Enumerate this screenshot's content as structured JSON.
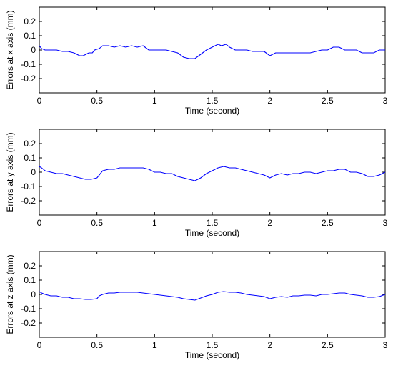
{
  "chart_data": [
    {
      "type": "line",
      "xlabel": "Time (second)",
      "ylabel": "Errors at x axis (mm)",
      "xlim": [
        0,
        3
      ],
      "ylim": [
        -0.3,
        0.3
      ],
      "xticks": [
        0,
        0.5,
        1,
        1.5,
        2,
        2.5,
        3
      ],
      "xtick_labels": [
        "0",
        "0.5",
        "1",
        "1.5",
        "2",
        "2.5",
        "3"
      ],
      "yticks": [
        -0.2,
        -0.1,
        0,
        0.1,
        0.2
      ],
      "ytick_labels": [
        "-0.2",
        "-0.1",
        "0",
        "0.1",
        "0.2"
      ],
      "grid": false,
      "line_color": "#0000ff",
      "series": [
        {
          "x": [
            0,
            0.02,
            0.05,
            0.1,
            0.15,
            0.2,
            0.25,
            0.3,
            0.35,
            0.38,
            0.43,
            0.46,
            0.48,
            0.52,
            0.55,
            0.6,
            0.65,
            0.7,
            0.75,
            0.8,
            0.85,
            0.9,
            0.95,
            1.0,
            1.05,
            1.1,
            1.15,
            1.2,
            1.25,
            1.3,
            1.35,
            1.4,
            1.45,
            1.5,
            1.55,
            1.58,
            1.62,
            1.65,
            1.7,
            1.75,
            1.8,
            1.85,
            1.9,
            1.95,
            2.0,
            2.05,
            2.1,
            2.15,
            2.2,
            2.25,
            2.3,
            2.35,
            2.4,
            2.45,
            2.5,
            2.55,
            2.6,
            2.65,
            2.7,
            2.75,
            2.8,
            2.85,
            2.9,
            2.95,
            3.0
          ],
          "y": [
            0.03,
            0.01,
            0.0,
            0.0,
            0.0,
            -0.01,
            -0.01,
            -0.02,
            -0.04,
            -0.04,
            -0.02,
            -0.02,
            0.0,
            0.01,
            0.03,
            0.03,
            0.02,
            0.03,
            0.02,
            0.03,
            0.02,
            0.03,
            0.0,
            0.0,
            0.0,
            0.0,
            -0.01,
            -0.02,
            -0.05,
            -0.06,
            -0.06,
            -0.03,
            0.0,
            0.02,
            0.04,
            0.03,
            0.04,
            0.02,
            0.0,
            0.0,
            0.0,
            -0.01,
            -0.01,
            -0.01,
            -0.04,
            -0.02,
            -0.02,
            -0.02,
            -0.02,
            -0.02,
            -0.02,
            -0.02,
            -0.01,
            0.0,
            0.0,
            0.02,
            0.02,
            0.0,
            0.0,
            0.0,
            -0.02,
            -0.02,
            -0.02,
            0.0,
            0.0
          ]
        }
      ]
    },
    {
      "type": "line",
      "xlabel": "Time (second)",
      "ylabel": "Errors at y axis (mm)",
      "xlim": [
        0,
        3
      ],
      "ylim": [
        -0.3,
        0.3
      ],
      "xticks": [
        0,
        0.5,
        1,
        1.5,
        2,
        2.5,
        3
      ],
      "xtick_labels": [
        "0",
        "0.5",
        "1",
        "1.5",
        "2",
        "2.5",
        "3"
      ],
      "yticks": [
        -0.2,
        -0.1,
        0,
        0.1,
        0.2
      ],
      "ytick_labels": [
        "-0.2",
        "-0.1",
        "0",
        "0.1",
        "0.2"
      ],
      "grid": false,
      "line_color": "#0000ff",
      "series": [
        {
          "x": [
            0,
            0.02,
            0.05,
            0.1,
            0.15,
            0.2,
            0.25,
            0.3,
            0.35,
            0.4,
            0.45,
            0.5,
            0.52,
            0.55,
            0.6,
            0.65,
            0.7,
            0.75,
            0.8,
            0.85,
            0.9,
            0.95,
            1.0,
            1.05,
            1.1,
            1.15,
            1.2,
            1.25,
            1.3,
            1.35,
            1.4,
            1.45,
            1.5,
            1.55,
            1.6,
            1.65,
            1.7,
            1.75,
            1.8,
            1.85,
            1.9,
            1.95,
            2.0,
            2.05,
            2.1,
            2.15,
            2.2,
            2.25,
            2.3,
            2.35,
            2.4,
            2.45,
            2.5,
            2.55,
            2.6,
            2.65,
            2.7,
            2.75,
            2.8,
            2.85,
            2.9,
            2.95,
            3.0
          ],
          "y": [
            0.04,
            0.03,
            0.01,
            0.0,
            -0.01,
            -0.01,
            -0.02,
            -0.03,
            -0.04,
            -0.05,
            -0.05,
            -0.04,
            -0.02,
            0.01,
            0.02,
            0.02,
            0.03,
            0.03,
            0.03,
            0.03,
            0.03,
            0.02,
            0.0,
            0.0,
            -0.01,
            -0.01,
            -0.03,
            -0.04,
            -0.05,
            -0.06,
            -0.04,
            -0.01,
            0.01,
            0.03,
            0.04,
            0.03,
            0.03,
            0.02,
            0.01,
            0.0,
            -0.01,
            -0.02,
            -0.04,
            -0.02,
            -0.01,
            -0.02,
            -0.01,
            -0.01,
            0.0,
            0.0,
            -0.01,
            0.0,
            0.01,
            0.01,
            0.02,
            0.02,
            0.0,
            0.0,
            -0.01,
            -0.03,
            -0.03,
            -0.02,
            0.0
          ]
        }
      ]
    },
    {
      "type": "line",
      "xlabel": "Time (second)",
      "ylabel": "Errors at z axis (mm)",
      "xlim": [
        0,
        3
      ],
      "ylim": [
        -0.3,
        0.3
      ],
      "xticks": [
        0,
        0.5,
        1,
        1.5,
        2,
        2.5,
        3
      ],
      "xtick_labels": [
        "0",
        "0.5",
        "1",
        "1.5",
        "2",
        "2.5",
        "3"
      ],
      "yticks": [
        -0.2,
        -0.1,
        0,
        0.1,
        0.2
      ],
      "ytick_labels": [
        "-0.2",
        "-0.1",
        "0",
        "0.1",
        "0.2"
      ],
      "grid": false,
      "line_color": "#0000ff",
      "series": [
        {
          "x": [
            0,
            0.02,
            0.05,
            0.1,
            0.15,
            0.2,
            0.25,
            0.3,
            0.35,
            0.4,
            0.45,
            0.5,
            0.52,
            0.55,
            0.6,
            0.65,
            0.7,
            0.75,
            0.8,
            0.85,
            0.9,
            0.95,
            1.0,
            1.05,
            1.1,
            1.15,
            1.2,
            1.25,
            1.3,
            1.35,
            1.4,
            1.45,
            1.5,
            1.55,
            1.6,
            1.65,
            1.7,
            1.75,
            1.8,
            1.85,
            1.9,
            1.95,
            2.0,
            2.05,
            2.1,
            2.15,
            2.2,
            2.25,
            2.3,
            2.35,
            2.4,
            2.45,
            2.5,
            2.55,
            2.6,
            2.65,
            2.7,
            2.75,
            2.8,
            2.85,
            2.9,
            2.95,
            3.0
          ],
          "y": [
            0.02,
            0.01,
            0.0,
            -0.01,
            -0.01,
            -0.02,
            -0.02,
            -0.03,
            -0.03,
            -0.035,
            -0.035,
            -0.03,
            -0.01,
            0.0,
            0.01,
            0.01,
            0.015,
            0.015,
            0.015,
            0.015,
            0.01,
            0.005,
            0.0,
            -0.005,
            -0.01,
            -0.015,
            -0.02,
            -0.03,
            -0.035,
            -0.04,
            -0.025,
            -0.01,
            0.0,
            0.015,
            0.02,
            0.015,
            0.015,
            0.01,
            0.0,
            -0.005,
            -0.01,
            -0.015,
            -0.03,
            -0.02,
            -0.015,
            -0.02,
            -0.01,
            -0.01,
            -0.005,
            -0.005,
            -0.01,
            0.0,
            0.0,
            0.005,
            0.01,
            0.01,
            0.0,
            -0.005,
            -0.01,
            -0.02,
            -0.02,
            -0.015,
            0.0
          ]
        }
      ]
    }
  ]
}
